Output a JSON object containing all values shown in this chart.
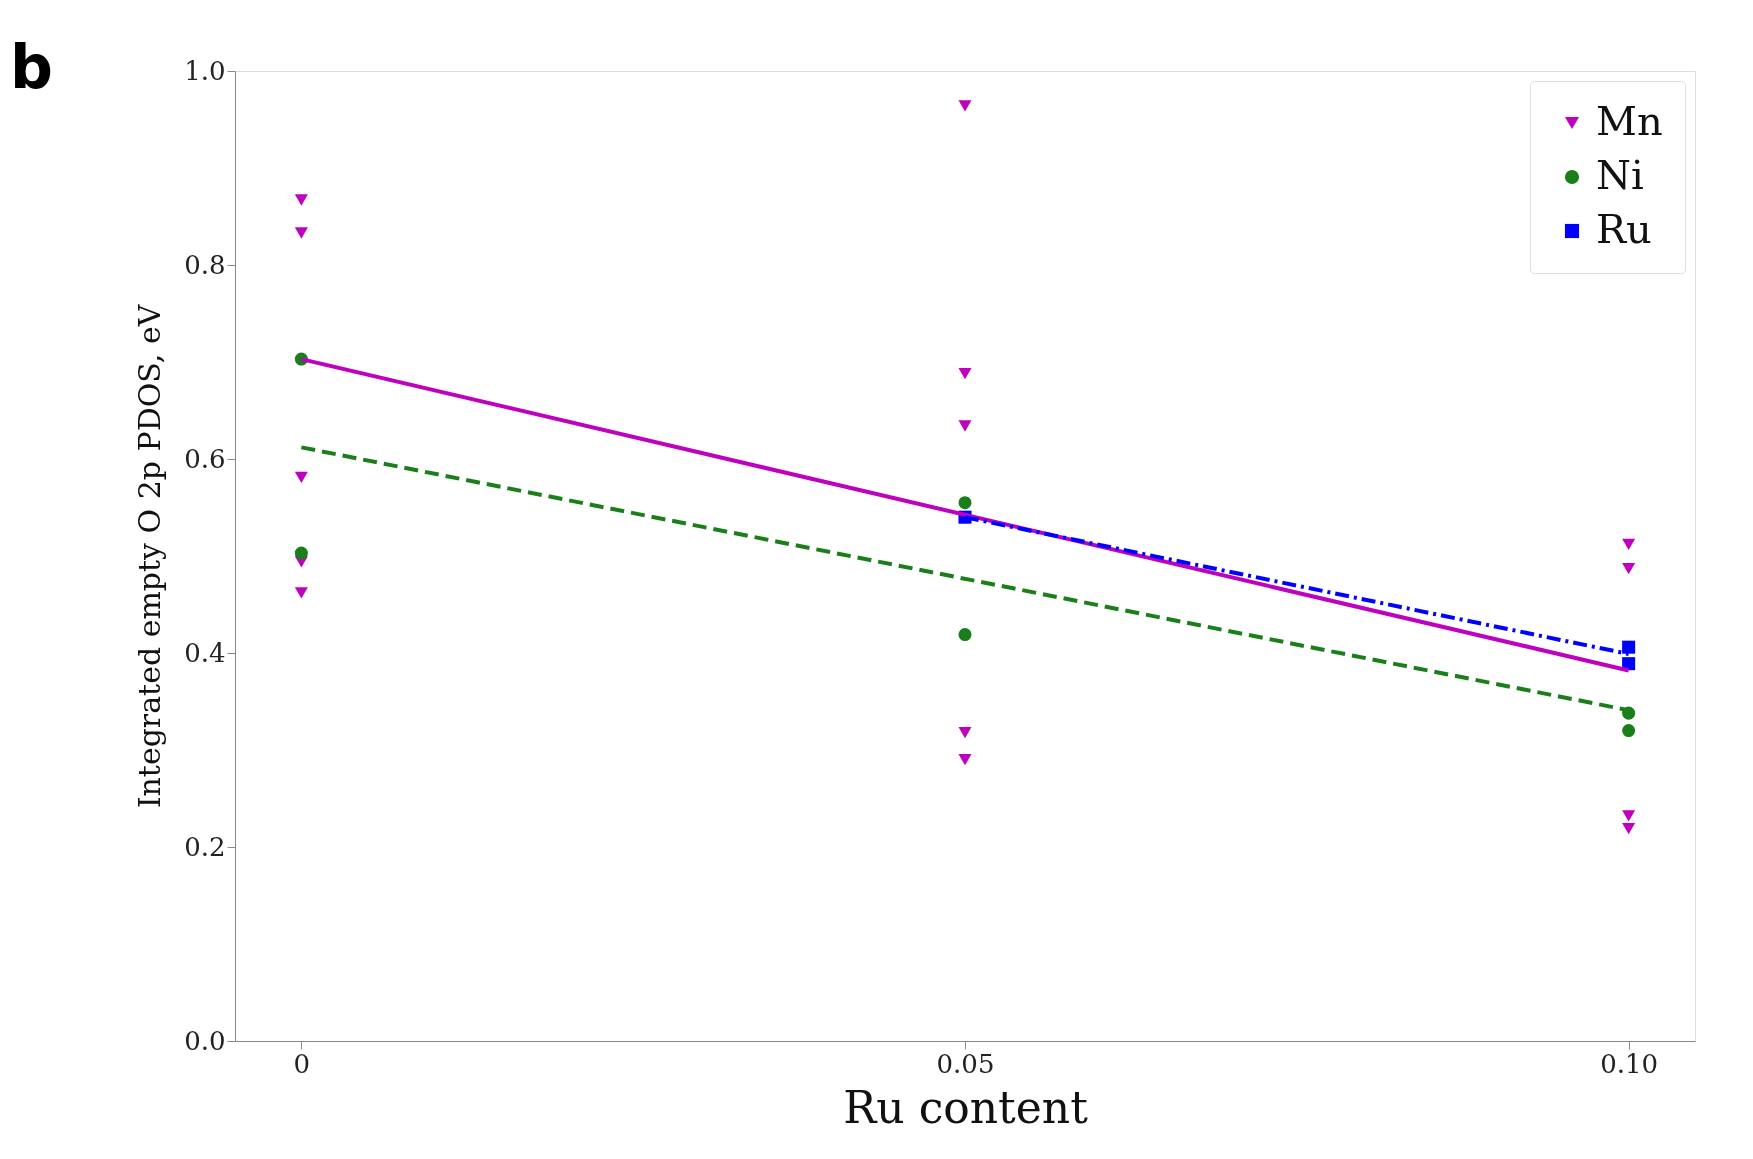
{
  "chart_data": {
    "type": "scatter",
    "xlabel": "Ru content",
    "ylabel": "Integrated empty O 2p PDOS, eV",
    "annotations": [
      "b"
    ],
    "xlim": [
      -0.005,
      0.105
    ],
    "xticks": [
      {
        "value": 0,
        "label": "0"
      },
      0.05,
      {
        "value": 0.1,
        "label": "0.10"
      }
    ],
    "ylim": [
      0,
      1.0
    ],
    "yticks": [
      {
        "value": 0,
        "label": "0.0"
      },
      0.2,
      0.4,
      0.6,
      0.8,
      {
        "value": 1.0,
        "label": "1.0"
      }
    ],
    "grid": false,
    "legend": "top right",
    "series": [
      {
        "name": "Mn",
        "type": "scatter",
        "marker": "triangle",
        "color": "#bf00bf",
        "x": [
          0,
          0,
          0,
          0,
          0,
          0.05,
          0.05,
          0.05,
          0.05,
          0.05,
          0.1,
          0.1,
          0.1,
          0.1
        ],
        "values": [
          0.867,
          0.833,
          0.581,
          0.494,
          0.462,
          0.964,
          0.688,
          0.634,
          0.318,
          0.29,
          0.512,
          0.487,
          0.232,
          0.219
        ]
      },
      {
        "name": "Ni",
        "type": "scatter",
        "marker": "circle",
        "color": "#1a7f1a",
        "x": [
          0,
          0,
          0.05,
          0.05,
          0.1,
          0.1
        ],
        "values": [
          0.703,
          0.503,
          0.555,
          0.419,
          0.338,
          0.32
        ]
      },
      {
        "name": "Ru",
        "type": "scatter",
        "marker": "square",
        "color": "#0000ff",
        "x": [
          0.05,
          0.1,
          0.1
        ],
        "values": [
          0.54,
          0.406,
          0.389
        ]
      },
      {
        "type": "line",
        "line_style": "solid",
        "color": "#bf00bf",
        "x": [
          0,
          0.1
        ],
        "values": [
          0.703,
          0.382
        ]
      },
      {
        "type": "line",
        "line_style": "dashed",
        "color": "#1a7f1a",
        "x": [
          0,
          0.1
        ],
        "values": [
          0.612,
          0.341
        ]
      },
      {
        "type": "line",
        "line_style": "dashdot",
        "color": "#0000ff",
        "x": [
          0.05,
          0.1
        ],
        "values": [
          0.54,
          0.399
        ]
      }
    ]
  }
}
